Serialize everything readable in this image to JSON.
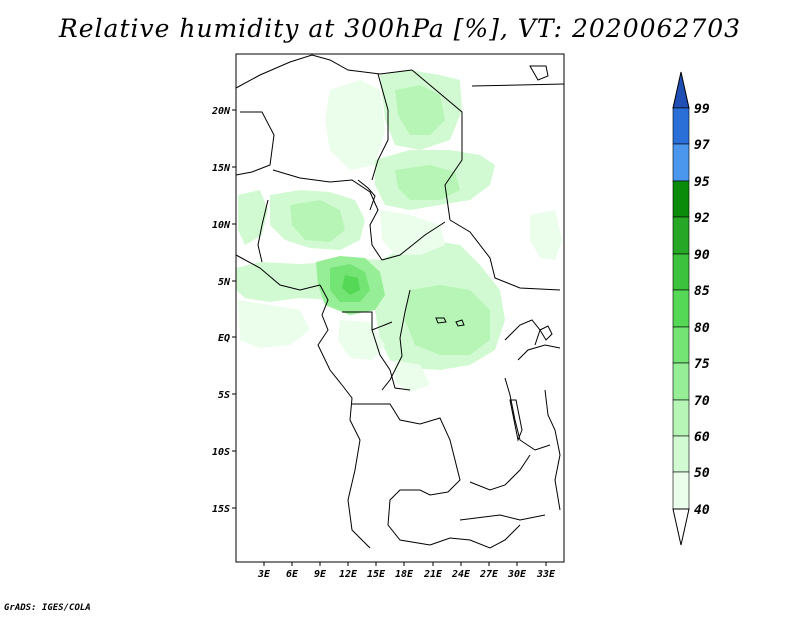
{
  "title": "Relative humidity at 300hPa [%], VT: 2020062703",
  "footer": "GrADS: IGES/COLA",
  "map": {
    "lon_labels": [
      "3E",
      "6E",
      "9E",
      "12E",
      "15E",
      "18E",
      "21E",
      "24E",
      "27E",
      "30E",
      "33E"
    ],
    "lat_labels": [
      "20N",
      "15N",
      "10N",
      "5N",
      "EQ",
      "5S",
      "10S",
      "15S"
    ]
  },
  "colorbar": {
    "levels": [
      "99",
      "97",
      "95",
      "92",
      "90",
      "85",
      "80",
      "75",
      "70",
      "60",
      "50",
      "40"
    ],
    "colors": {
      "blue_top": "#1f4fb5",
      "blue_1": "#2a6fd8",
      "blue_2": "#4b97ee",
      "green_1": "#0a8c0a",
      "green_2": "#26a826",
      "green_3": "#3cc23c",
      "green_4": "#55d855",
      "green_5": "#74e474",
      "green_6": "#96ee96",
      "green_7": "#b6f5b6",
      "green_8": "#d2fad2",
      "green_9": "#ebfdeb",
      "white": "#ffffff"
    }
  }
}
